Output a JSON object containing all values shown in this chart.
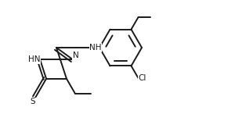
{
  "bg_color": "#ffffff",
  "line_color": "#1a1a1a",
  "line_width": 1.4,
  "font_size": 7.5,
  "figsize": [
    3.0,
    1.78
  ],
  "dpi": 100,
  "xlim": [
    0.0,
    3.0
  ],
  "ylim": [
    0.0,
    1.78
  ]
}
